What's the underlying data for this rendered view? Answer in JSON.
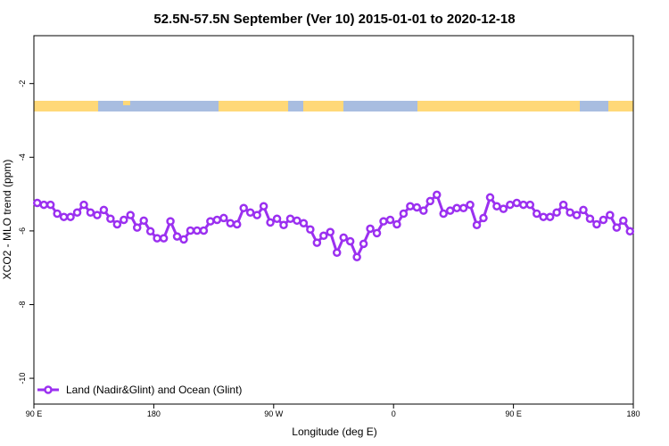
{
  "chart_data": {
    "type": "line",
    "title": "52.5N-57.5N September (Ver 10)   2015-01-01 to 2020-12-18",
    "x_label": "Longitude (deg E)",
    "y_label": "XCO2 - MLO trend (ppm)",
    "xlim": [
      90,
      540
    ],
    "ylim": [
      -10.7,
      -0.7
    ],
    "xticks": [
      {
        "value": 90,
        "label": "90 E"
      },
      180,
      {
        "value": 270,
        "label": "90 W"
      },
      {
        "value": 360,
        "label": "0"
      },
      {
        "value": 450,
        "label": "90 E"
      },
      {
        "value": 540,
        "label": "180"
      }
    ],
    "yticks": [
      -10,
      -8,
      -6,
      -4,
      -2
    ],
    "legend_position": "bottom-left",
    "x": [
      92.5,
      97.5,
      102.5,
      107.5,
      112.5,
      117.5,
      122.5,
      127.5,
      132.5,
      137.5,
      142.5,
      147.5,
      152.5,
      157.5,
      162.5,
      167.5,
      172.5,
      177.5,
      182.5,
      187.5,
      192.5,
      197.5,
      202.5,
      207.5,
      212.5,
      217.5,
      222.5,
      227.5,
      232.5,
      237.5,
      242.5,
      247.5,
      252.5,
      257.5,
      262.5,
      267.5,
      272.5,
      277.5,
      282.5,
      287.5,
      292.5,
      297.5,
      302.5,
      307.5,
      312.5,
      317.5,
      322.5,
      327.5,
      332.5,
      337.5,
      342.5,
      347.5,
      352.5,
      357.5,
      362.5,
      367.5,
      372.5,
      377.5,
      382.5,
      387.5,
      392.5,
      397.5,
      402.5,
      407.5,
      412.5,
      417.5,
      422.5,
      427.5,
      432.5,
      437.5,
      442.5,
      447.5,
      452.5,
      457.5,
      462.5,
      467.5,
      472.5,
      477.5,
      482.5,
      487.5,
      492.5,
      497.5,
      502.5,
      507.5,
      512.5,
      517.5,
      522.5,
      527.5,
      532.5,
      537.5
    ],
    "series": [
      {
        "name": "Land (Nadir&Glint) and Ocean (Glint)",
        "color": "#9b30f0",
        "values": [
          -5.24,
          -5.29,
          -5.29,
          -5.53,
          -5.62,
          -5.62,
          -5.5,
          -5.29,
          -5.5,
          -5.57,
          -5.43,
          -5.67,
          -5.82,
          -5.7,
          -5.57,
          -5.91,
          -5.72,
          -6.01,
          -6.2,
          -6.2,
          -5.74,
          -6.15,
          -6.23,
          -5.99,
          -5.99,
          -5.99,
          -5.74,
          -5.7,
          -5.65,
          -5.79,
          -5.82,
          -5.38,
          -5.5,
          -5.57,
          -5.33,
          -5.77,
          -5.67,
          -5.84,
          -5.67,
          -5.72,
          -5.79,
          -5.96,
          -6.32,
          -6.13,
          -6.03,
          -6.59,
          -6.18,
          -6.28,
          -6.71,
          -6.35,
          -5.94,
          -6.06,
          -5.74,
          -5.7,
          -5.82,
          -5.53,
          -5.33,
          -5.36,
          -5.45,
          -5.19,
          -5.02,
          -5.53,
          -5.45,
          -5.38,
          -5.38,
          -5.29,
          -5.84,
          -5.65,
          -5.09,
          -5.33,
          -5.4,
          -5.29,
          -5.24,
          -5.29,
          -5.29,
          -5.53,
          -5.62,
          -5.62,
          -5.5,
          -5.29,
          -5.5,
          -5.57,
          -5.43,
          -5.67,
          -5.82,
          -5.7,
          -5.57,
          -5.91,
          -5.72,
          -6.01
        ]
      }
    ]
  }
}
